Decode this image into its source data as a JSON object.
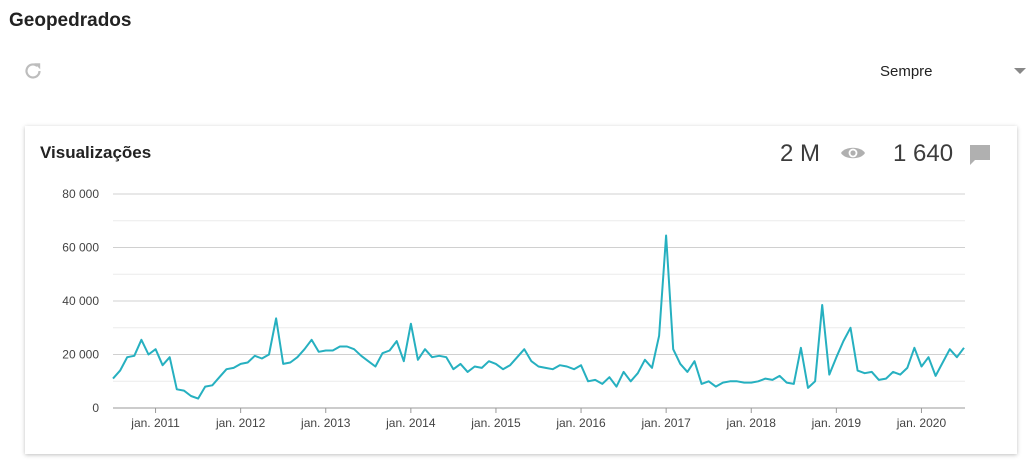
{
  "page": {
    "title": "Geopedrados"
  },
  "toolbar": {
    "refresh_icon": "refresh-icon",
    "period": {
      "selected": "Sempre"
    }
  },
  "card": {
    "title": "Visualizações",
    "views": "2 M",
    "comments": "1 640",
    "views_icon": "eye-icon",
    "comments_icon": "comment-icon"
  },
  "colors": {
    "line": "#26b0c0",
    "grid": "#d0d0d0",
    "axis": "#999999"
  },
  "chart_data": {
    "type": "line",
    "title": "Visualizações",
    "xlabel": "",
    "ylabel": "",
    "ylim": [
      0,
      80000
    ],
    "yticks": [
      {
        "value": 0,
        "label": "0"
      },
      {
        "value": 20000,
        "label": "20 000"
      },
      {
        "value": 40000,
        "label": "40 000"
      },
      {
        "value": 60000,
        "label": "60 000"
      },
      {
        "value": 80000,
        "label": "80 000"
      }
    ],
    "xticks": [
      {
        "index": 6,
        "label": "jan. 2011"
      },
      {
        "index": 18,
        "label": "jan. 2012"
      },
      {
        "index": 30,
        "label": "jan. 2013"
      },
      {
        "index": 42,
        "label": "jan. 2014"
      },
      {
        "index": 54,
        "label": "jan. 2015"
      },
      {
        "index": 66,
        "label": "jan. 2016"
      },
      {
        "index": 78,
        "label": "jan. 2017"
      },
      {
        "index": 90,
        "label": "jan. 2018"
      },
      {
        "index": 102,
        "label": "jan. 2019"
      },
      {
        "index": 114,
        "label": "jan. 2020"
      }
    ],
    "grid": true,
    "legend": "none",
    "series": [
      {
        "values": [
          11000,
          14000,
          19000,
          19500,
          25500,
          20000,
          22000,
          16000,
          19000,
          7000,
          6500,
          4500,
          3500,
          8000,
          8500,
          11500,
          14500,
          15000,
          16500,
          17000,
          19500,
          18500,
          20000,
          33500,
          16500,
          17000,
          19000,
          22000,
          25500,
          21000,
          21500,
          21500,
          23000,
          23000,
          22000,
          19500,
          17500,
          15500,
          20500,
          21500,
          25000,
          17500,
          31500,
          18000,
          22000,
          19000,
          19500,
          19000,
          14500,
          16500,
          13500,
          15500,
          15000,
          17500,
          16500,
          14500,
          16000,
          19000,
          22000,
          17500,
          15500,
          15000,
          14500,
          16000,
          15500,
          14500,
          16000,
          10000,
          10500,
          9000,
          11500,
          8000,
          13500,
          10000,
          13000,
          18000,
          15000,
          27000,
          64500,
          22000,
          16500,
          13500,
          17500,
          9000,
          10000,
          8000,
          9500,
          10000,
          10000,
          9500,
          9500,
          10000,
          11000,
          10500,
          12000,
          9500,
          9000,
          22500,
          7500,
          10000,
          38500,
          12500,
          19000,
          25000,
          30000,
          14000,
          13000,
          13500,
          10500,
          11000,
          13500,
          12500,
          15000,
          22500,
          15500,
          19000,
          12000,
          17000,
          22000,
          19000,
          22500
        ]
      }
    ]
  }
}
